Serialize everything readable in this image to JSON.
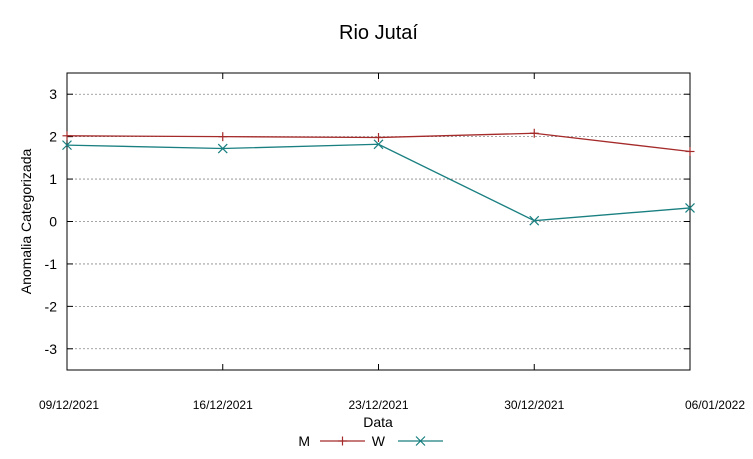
{
  "chart_data": {
    "type": "line",
    "title": "Rio Jutaí",
    "xlabel": "Data",
    "ylabel": "Anomalia Categorizada",
    "x": [
      "09/12/2021",
      "16/12/2021",
      "23/12/2021",
      "30/12/2021",
      "06/01/2022"
    ],
    "ylim": [
      -3.5,
      3.5
    ],
    "yticks": [
      3,
      2,
      1,
      0,
      -1,
      -2,
      -3
    ],
    "grid": true,
    "legend_position": "bottom-center",
    "series": [
      {
        "name": "M",
        "color": "#a52a2a",
        "marker": "plus",
        "values": [
          2.02,
          2.0,
          1.98,
          2.08,
          1.65
        ]
      },
      {
        "name": "W",
        "color": "#1a7f80",
        "marker": "cross",
        "values": [
          1.8,
          1.72,
          1.82,
          0.02,
          0.32
        ]
      }
    ]
  }
}
